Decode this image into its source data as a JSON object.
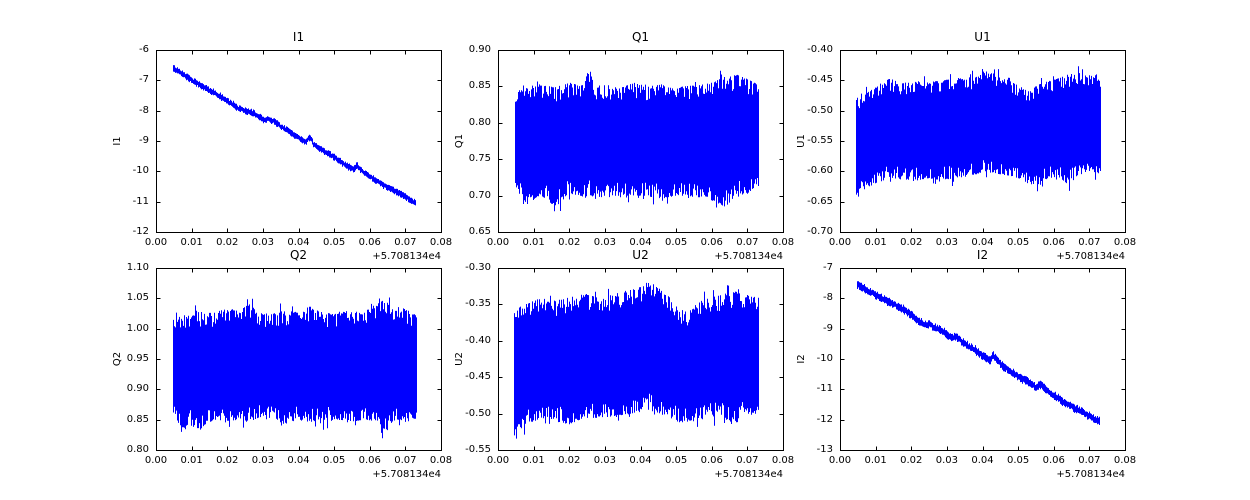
{
  "figure": {
    "background": "#ffffff",
    "axis_color": "#000000",
    "line_color": "#0000ff",
    "x_offset_label": "+5.708134e4"
  },
  "chart_data": [
    {
      "id": "i1",
      "type": "noisy-trend",
      "title": "I1",
      "ylabel": "I1",
      "row": 0,
      "col": 0,
      "xlim": [
        0.0,
        0.08
      ],
      "ylim": [
        -12,
        -6
      ],
      "xtick_values": [
        0.0,
        0.01,
        0.02,
        0.03,
        0.04,
        0.05,
        0.06,
        0.07,
        0.08
      ],
      "xtick_labels": [
        "0.00",
        "0.01",
        "0.02",
        "0.03",
        "0.04",
        "0.05",
        "0.06",
        "0.07",
        "0.08"
      ],
      "ytick_values": [
        -6,
        -7,
        -8,
        -9,
        -10,
        -11,
        -12
      ],
      "ytick_labels": [
        "-6",
        "-7",
        "-8",
        "-9",
        "-10",
        "-11",
        "-12"
      ],
      "x_offset_label": "+5.708134e4",
      "x_data_range": [
        0.0048,
        0.0728
      ],
      "band_halfwidth": 0.09,
      "trend": {
        "x": [
          0.005,
          0.0075,
          0.01,
          0.0125,
          0.015,
          0.0175,
          0.02,
          0.0215,
          0.023,
          0.025,
          0.0265,
          0.028,
          0.03,
          0.0315,
          0.033,
          0.035,
          0.0375,
          0.04,
          0.042,
          0.0428,
          0.0435,
          0.044,
          0.046,
          0.048,
          0.05,
          0.052,
          0.054,
          0.0555,
          0.0562,
          0.057,
          0.058,
          0.06,
          0.0625,
          0.065,
          0.0675,
          0.07,
          0.0715,
          0.0728
        ],
        "y": [
          -6.62,
          -6.8,
          -7.0,
          -7.17,
          -7.33,
          -7.5,
          -7.7,
          -7.8,
          -7.93,
          -8.0,
          -8.06,
          -8.13,
          -8.3,
          -8.28,
          -8.35,
          -8.52,
          -8.7,
          -8.9,
          -9.05,
          -8.88,
          -8.95,
          -9.1,
          -9.25,
          -9.4,
          -9.55,
          -9.7,
          -9.85,
          -9.95,
          -9.8,
          -9.9,
          -10.03,
          -10.18,
          -10.37,
          -10.53,
          -10.68,
          -10.85,
          -10.95,
          -11.05
        ]
      }
    },
    {
      "id": "q1",
      "type": "noisy-band",
      "title": "Q1",
      "ylabel": "Q1",
      "row": 0,
      "col": 1,
      "xlim": [
        0.0,
        0.08
      ],
      "ylim": [
        0.65,
        0.9
      ],
      "xtick_values": [
        0.0,
        0.01,
        0.02,
        0.03,
        0.04,
        0.05,
        0.06,
        0.07,
        0.08
      ],
      "xtick_labels": [
        "0.00",
        "0.01",
        "0.02",
        "0.03",
        "0.04",
        "0.05",
        "0.06",
        "0.07",
        "0.08"
      ],
      "ytick_values": [
        0.9,
        0.85,
        0.8,
        0.75,
        0.7,
        0.65
      ],
      "ytick_labels": [
        "0.90",
        "0.85",
        "0.80",
        "0.75",
        "0.70",
        "0.65"
      ],
      "x_offset_label": "+5.708134e4",
      "x_data_range": [
        0.0048,
        0.073
      ],
      "spike": 0.012,
      "envelope": {
        "x": [
          0.0048,
          0.008,
          0.012,
          0.016,
          0.02,
          0.024,
          0.0255,
          0.027,
          0.03,
          0.034,
          0.038,
          0.042,
          0.046,
          0.05,
          0.054,
          0.058,
          0.061,
          0.064,
          0.067,
          0.07,
          0.073
        ],
        "top": [
          0.843,
          0.848,
          0.852,
          0.849,
          0.855,
          0.852,
          0.877,
          0.85,
          0.853,
          0.848,
          0.855,
          0.85,
          0.853,
          0.849,
          0.851,
          0.853,
          0.858,
          0.864,
          0.866,
          0.86,
          0.852
        ],
        "bottom": [
          0.71,
          0.688,
          0.7,
          0.684,
          0.703,
          0.698,
          0.7,
          0.695,
          0.697,
          0.7,
          0.694,
          0.699,
          0.695,
          0.7,
          0.696,
          0.699,
          0.69,
          0.684,
          0.698,
          0.702,
          0.706
        ]
      }
    },
    {
      "id": "u1",
      "type": "noisy-band",
      "title": "U1",
      "ylabel": "U1",
      "row": 0,
      "col": 2,
      "xlim": [
        0.0,
        0.08
      ],
      "ylim": [
        -0.7,
        -0.4
      ],
      "xtick_values": [
        0.0,
        0.01,
        0.02,
        0.03,
        0.04,
        0.05,
        0.06,
        0.07,
        0.08
      ],
      "xtick_labels": [
        "0.00",
        "0.01",
        "0.02",
        "0.03",
        "0.04",
        "0.05",
        "0.06",
        "0.07",
        "0.08"
      ],
      "ytick_values": [
        -0.4,
        -0.45,
        -0.5,
        -0.55,
        -0.6,
        -0.65,
        -0.7
      ],
      "ytick_labels": [
        "-0.40",
        "-0.45",
        "-0.50",
        "-0.55",
        "-0.60",
        "-0.65",
        "-0.70"
      ],
      "x_offset_label": "+5.708134e4",
      "x_data_range": [
        0.0045,
        0.073
      ],
      "spike": 0.012,
      "envelope": {
        "x": [
          0.0045,
          0.006,
          0.008,
          0.011,
          0.014,
          0.017,
          0.02,
          0.024,
          0.028,
          0.032,
          0.036,
          0.04,
          0.0415,
          0.044,
          0.047,
          0.05,
          0.0525,
          0.055,
          0.058,
          0.061,
          0.064,
          0.067,
          0.07,
          0.073
        ],
        "top": [
          -0.478,
          -0.472,
          -0.468,
          -0.458,
          -0.446,
          -0.455,
          -0.452,
          -0.454,
          -0.45,
          -0.448,
          -0.445,
          -0.44,
          -0.433,
          -0.442,
          -0.446,
          -0.458,
          -0.468,
          -0.458,
          -0.452,
          -0.447,
          -0.44,
          -0.437,
          -0.441,
          -0.452
        ],
        "bottom": [
          -0.648,
          -0.632,
          -0.625,
          -0.618,
          -0.61,
          -0.614,
          -0.617,
          -0.612,
          -0.614,
          -0.612,
          -0.608,
          -0.602,
          -0.6,
          -0.604,
          -0.607,
          -0.612,
          -0.62,
          -0.623,
          -0.613,
          -0.608,
          -0.622,
          -0.606,
          -0.6,
          -0.604
        ]
      }
    },
    {
      "id": "q2",
      "type": "noisy-band",
      "title": "Q2",
      "ylabel": "Q2",
      "row": 1,
      "col": 0,
      "xlim": [
        0.0,
        0.08
      ],
      "ylim": [
        0.8,
        1.1
      ],
      "xtick_values": [
        0.0,
        0.01,
        0.02,
        0.03,
        0.04,
        0.05,
        0.06,
        0.07,
        0.08
      ],
      "xtick_labels": [
        "0.00",
        "0.01",
        "0.02",
        "0.03",
        "0.04",
        "0.05",
        "0.06",
        "0.07",
        "0.08"
      ],
      "ytick_values": [
        1.1,
        1.05,
        1.0,
        0.95,
        0.9,
        0.85,
        0.8
      ],
      "ytick_labels": [
        "1.10",
        "1.05",
        "1.00",
        "0.95",
        "0.90",
        "0.85",
        "0.80"
      ],
      "x_offset_label": "+5.708134e4",
      "x_data_range": [
        0.0048,
        0.073
      ],
      "spike": 0.014,
      "envelope": {
        "x": [
          0.0048,
          0.008,
          0.0095,
          0.012,
          0.016,
          0.02,
          0.024,
          0.0255,
          0.028,
          0.032,
          0.036,
          0.04,
          0.043,
          0.046,
          0.05,
          0.054,
          0.058,
          0.061,
          0.0635,
          0.067,
          0.07,
          0.073
        ],
        "top": [
          1.018,
          1.024,
          1.02,
          1.028,
          1.026,
          1.034,
          1.028,
          1.05,
          1.028,
          1.024,
          1.03,
          1.027,
          1.037,
          1.028,
          1.024,
          1.03,
          1.027,
          1.038,
          1.046,
          1.038,
          1.032,
          1.022
        ],
        "bottom": [
          0.852,
          0.828,
          0.848,
          0.832,
          0.85,
          0.847,
          0.85,
          0.846,
          0.851,
          0.853,
          0.842,
          0.85,
          0.846,
          0.844,
          0.851,
          0.845,
          0.85,
          0.848,
          0.822,
          0.85,
          0.846,
          0.852
        ]
      }
    },
    {
      "id": "u2",
      "type": "noisy-band",
      "title": "U2",
      "ylabel": "U2",
      "row": 1,
      "col": 1,
      "xlim": [
        0.0,
        0.08
      ],
      "ylim": [
        -0.55,
        -0.3
      ],
      "xtick_values": [
        0.0,
        0.01,
        0.02,
        0.03,
        0.04,
        0.05,
        0.06,
        0.07,
        0.08
      ],
      "xtick_labels": [
        "0.00",
        "0.01",
        "0.02",
        "0.03",
        "0.04",
        "0.05",
        "0.06",
        "0.07",
        "0.08"
      ],
      "ytick_values": [
        -0.3,
        -0.35,
        -0.4,
        -0.45,
        -0.5,
        -0.55
      ],
      "ytick_labels": [
        "-0.30",
        "-0.35",
        "-0.40",
        "-0.45",
        "-0.50",
        "-0.55"
      ],
      "x_offset_label": "+5.708134e4",
      "x_data_range": [
        0.0045,
        0.073
      ],
      "spike": 0.012,
      "envelope": {
        "x": [
          0.0045,
          0.006,
          0.008,
          0.012,
          0.016,
          0.02,
          0.024,
          0.028,
          0.032,
          0.036,
          0.04,
          0.042,
          0.045,
          0.048,
          0.051,
          0.0535,
          0.056,
          0.06,
          0.063,
          0.066,
          0.069,
          0.073
        ],
        "top": [
          -0.362,
          -0.352,
          -0.349,
          -0.341,
          -0.345,
          -0.34,
          -0.336,
          -0.34,
          -0.336,
          -0.331,
          -0.326,
          -0.317,
          -0.327,
          -0.34,
          -0.355,
          -0.363,
          -0.346,
          -0.34,
          -0.336,
          -0.331,
          -0.336,
          -0.341
        ],
        "bottom": [
          -0.545,
          -0.522,
          -0.516,
          -0.506,
          -0.511,
          -0.515,
          -0.506,
          -0.506,
          -0.504,
          -0.501,
          -0.498,
          -0.495,
          -0.5,
          -0.505,
          -0.514,
          -0.512,
          -0.509,
          -0.505,
          -0.507,
          -0.52,
          -0.498,
          -0.501
        ]
      }
    },
    {
      "id": "i2",
      "type": "noisy-trend",
      "title": "I2",
      "ylabel": "I2",
      "row": 1,
      "col": 2,
      "xlim": [
        0.0,
        0.08
      ],
      "ylim": [
        -13,
        -7
      ],
      "xtick_values": [
        0.0,
        0.01,
        0.02,
        0.03,
        0.04,
        0.05,
        0.06,
        0.07,
        0.08
      ],
      "xtick_labels": [
        "0.00",
        "0.01",
        "0.02",
        "0.03",
        "0.04",
        "0.05",
        "0.06",
        "0.07",
        "0.08"
      ],
      "ytick_values": [
        -7,
        -8,
        -9,
        -10,
        -11,
        -12,
        -13
      ],
      "ytick_labels": [
        "-7",
        "-8",
        "-9",
        "-10",
        "-11",
        "-12",
        "-13"
      ],
      "x_offset_label": "+5.708134e4",
      "x_data_range": [
        0.0048,
        0.0728
      ],
      "band_halfwidth": 0.11,
      "trend": {
        "x": [
          0.005,
          0.0075,
          0.01,
          0.0125,
          0.015,
          0.0175,
          0.02,
          0.022,
          0.024,
          0.0252,
          0.026,
          0.028,
          0.03,
          0.0315,
          0.0325,
          0.034,
          0.036,
          0.038,
          0.04,
          0.042,
          0.0428,
          0.0438,
          0.045,
          0.047,
          0.049,
          0.051,
          0.053,
          0.055,
          0.0562,
          0.057,
          0.0585,
          0.06,
          0.0625,
          0.065,
          0.0675,
          0.07,
          0.0715,
          0.0728
        ],
        "y": [
          -7.55,
          -7.73,
          -7.9,
          -8.05,
          -8.2,
          -8.35,
          -8.55,
          -8.75,
          -8.88,
          -8.83,
          -8.95,
          -9.02,
          -9.2,
          -9.3,
          -9.25,
          -9.42,
          -9.58,
          -9.72,
          -9.9,
          -10.05,
          -9.87,
          -10.02,
          -10.18,
          -10.35,
          -10.5,
          -10.65,
          -10.78,
          -10.95,
          -10.82,
          -10.92,
          -11.1,
          -11.22,
          -11.4,
          -11.57,
          -11.73,
          -11.88,
          -12.0,
          -12.05
        ]
      }
    }
  ]
}
